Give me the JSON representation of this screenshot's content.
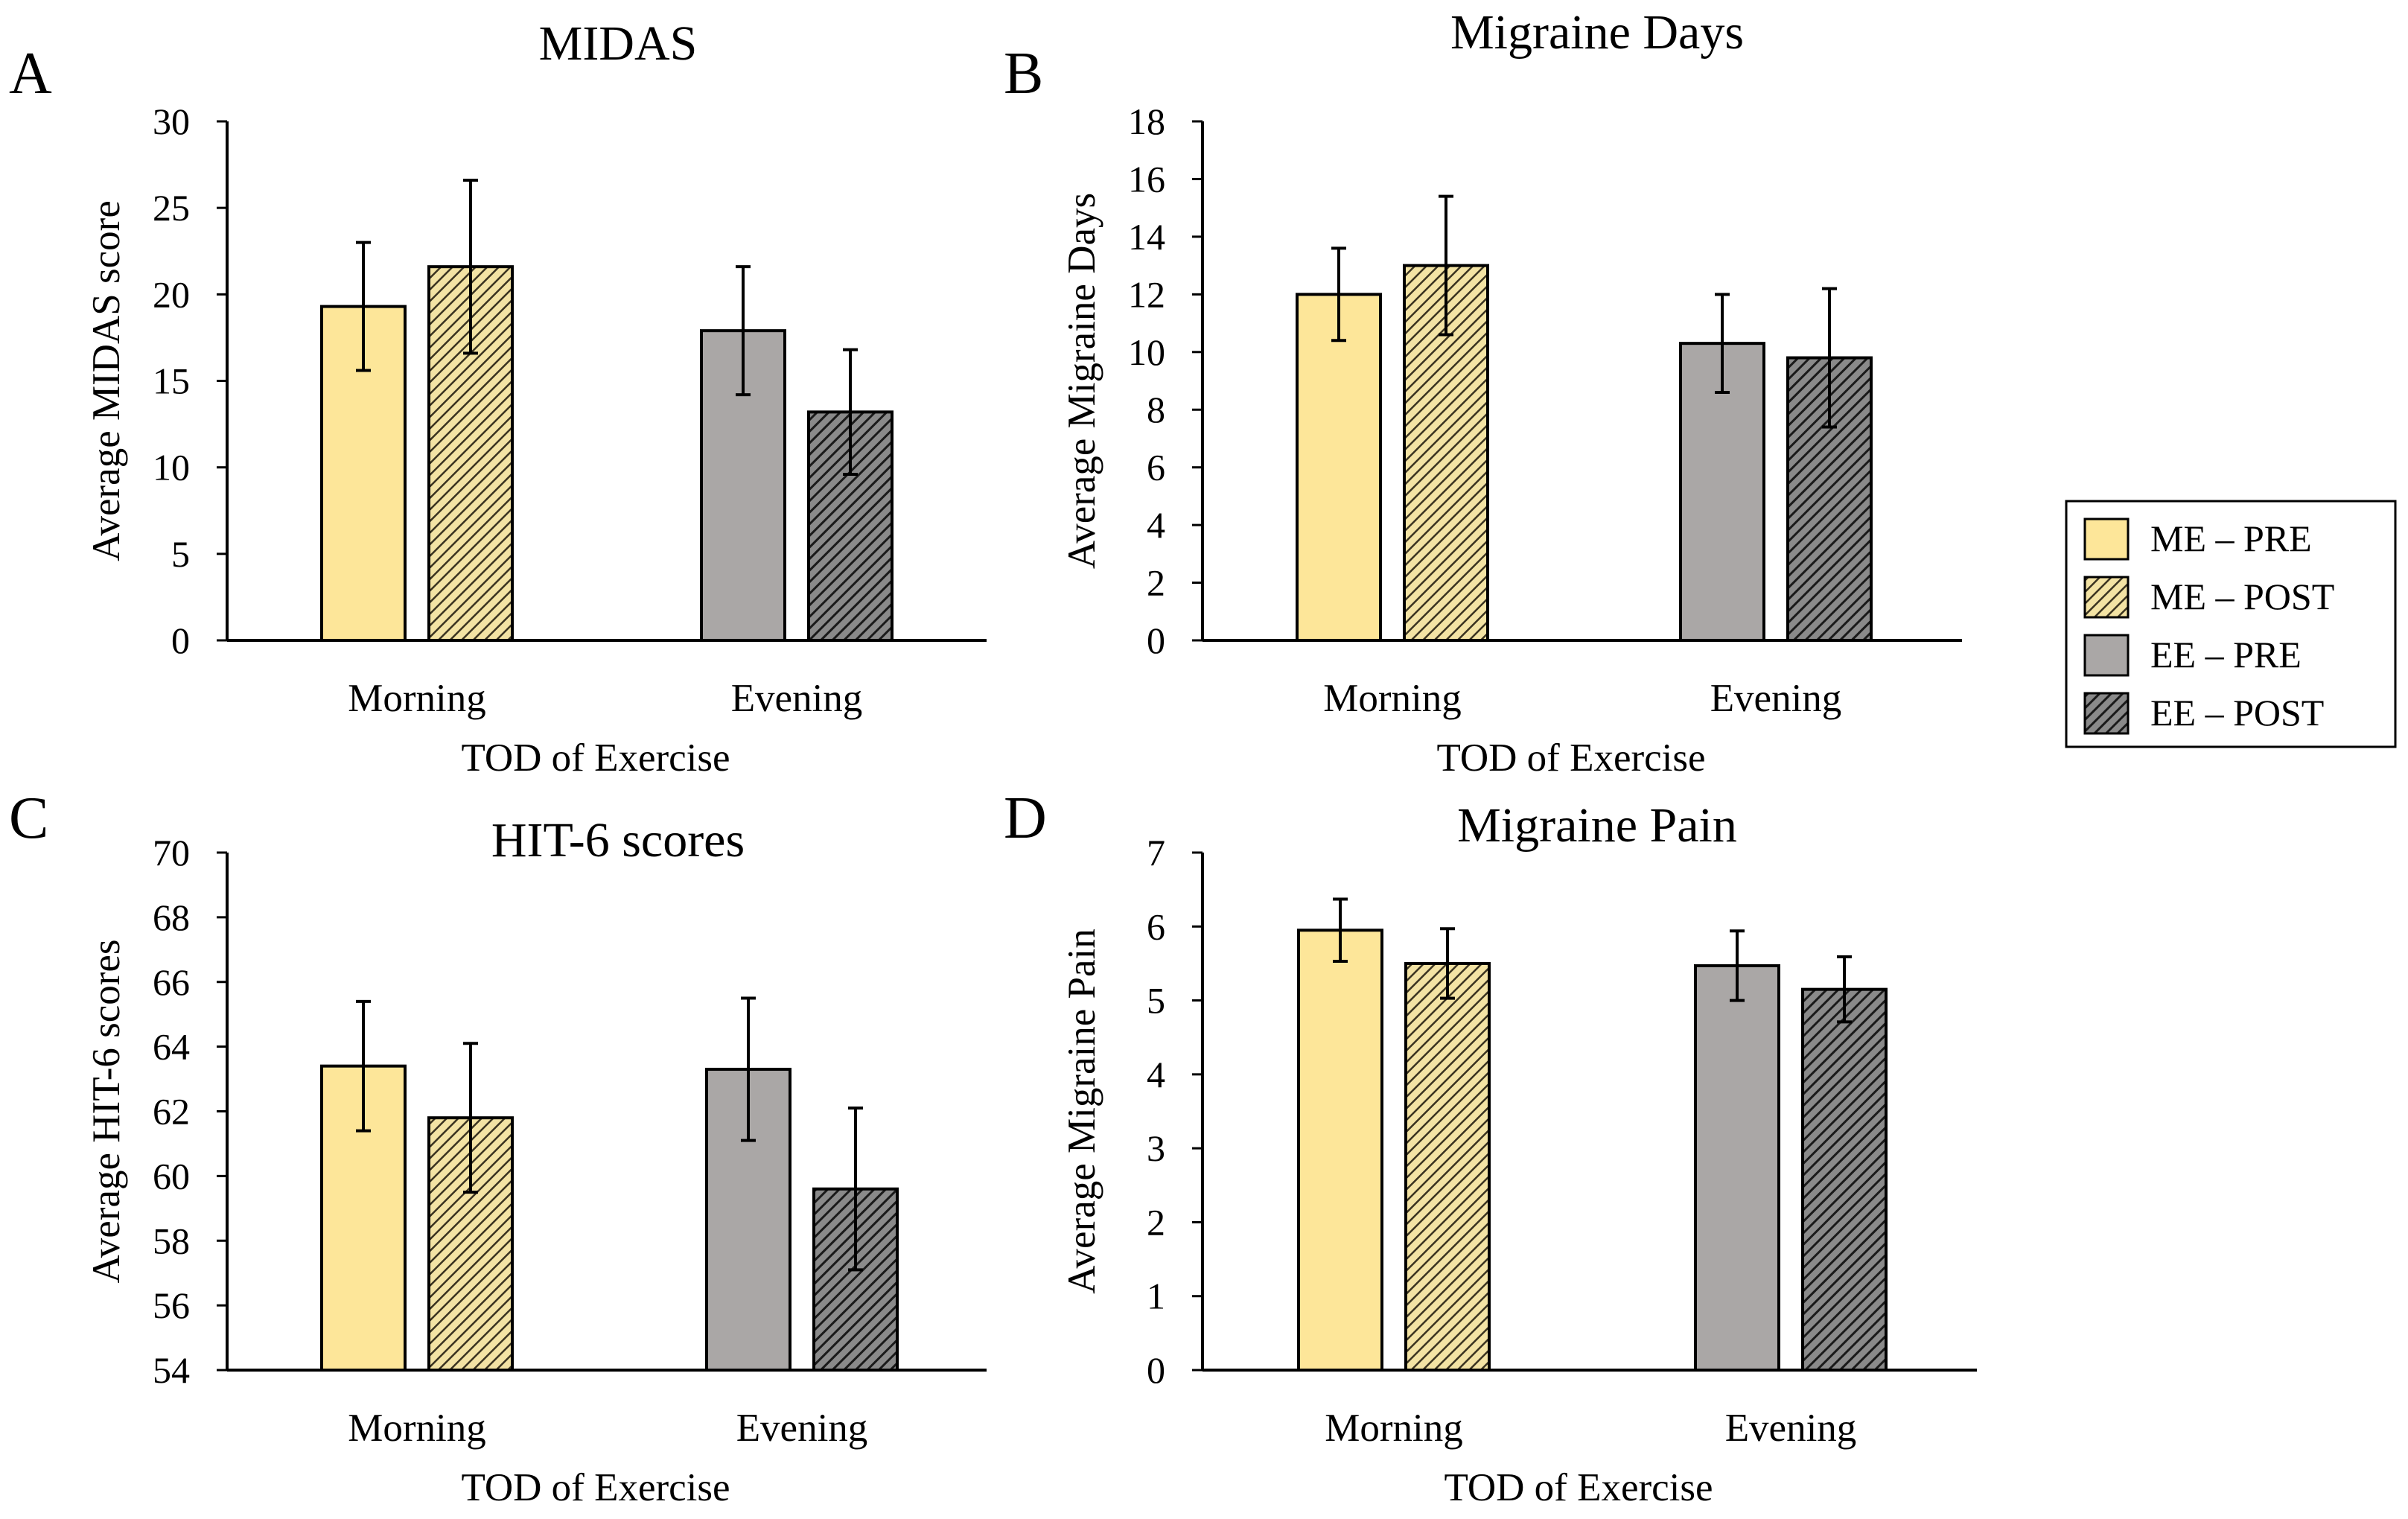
{
  "legend": {
    "items": [
      {
        "label": "ME – PRE",
        "color": "#fde699",
        "hatch": false
      },
      {
        "label": "ME – POST",
        "color": "#d9c16b",
        "hatch": true
      },
      {
        "label": "EE – PRE",
        "color": "#aaa7a6",
        "hatch": false
      },
      {
        "label": "EE – POST",
        "color": "#5a5a5a",
        "hatch": true
      }
    ]
  },
  "chart_data": [
    {
      "panel": "A",
      "type": "bar",
      "title": "MIDAS",
      "xlabel": "TOD of Exercise",
      "ylabel": "Average MIDAS score",
      "categories": [
        "Morning",
        "Evening"
      ],
      "ylim": [
        0,
        30
      ],
      "yticks": [
        0,
        5,
        10,
        15,
        20,
        25,
        30
      ],
      "series": [
        {
          "name": "ME – PRE",
          "values": [
            19.3,
            null
          ],
          "error": [
            3.7,
            null
          ]
        },
        {
          "name": "ME – POST",
          "values": [
            21.6,
            null
          ],
          "error": [
            5.0,
            null
          ]
        },
        {
          "name": "EE – PRE",
          "values": [
            null,
            17.9
          ],
          "error": [
            null,
            3.7
          ]
        },
        {
          "name": "EE – POST",
          "values": [
            null,
            13.2
          ],
          "error": [
            null,
            3.6
          ]
        }
      ]
    },
    {
      "panel": "B",
      "type": "bar",
      "title": "Migraine Days",
      "xlabel": "TOD of Exercise",
      "ylabel": "Average Migraine Days",
      "categories": [
        "Morning",
        "Evening"
      ],
      "ylim": [
        0,
        18
      ],
      "yticks": [
        0,
        2,
        4,
        6,
        8,
        10,
        12,
        14,
        16,
        18
      ],
      "series": [
        {
          "name": "ME – PRE",
          "values": [
            12.0,
            null
          ],
          "error": [
            1.6,
            null
          ]
        },
        {
          "name": "ME – POST",
          "values": [
            13.0,
            null
          ],
          "error": [
            2.4,
            null
          ]
        },
        {
          "name": "EE – PRE",
          "values": [
            null,
            10.3
          ],
          "error": [
            null,
            1.7
          ]
        },
        {
          "name": "EE – POST",
          "values": [
            null,
            9.8
          ],
          "error": [
            null,
            2.4
          ]
        }
      ]
    },
    {
      "panel": "C",
      "type": "bar",
      "title": "HIT-6 scores",
      "xlabel": "TOD of Exercise",
      "ylabel": "Average HIT-6 scores",
      "categories": [
        "Morning",
        "Evening"
      ],
      "ylim": [
        54,
        70
      ],
      "yticks": [
        54,
        56,
        58,
        60,
        62,
        64,
        66,
        68,
        70
      ],
      "series": [
        {
          "name": "ME – PRE",
          "values": [
            63.4,
            null
          ],
          "error": [
            2.0,
            null
          ]
        },
        {
          "name": "ME – POST",
          "values": [
            61.8,
            null
          ],
          "error": [
            2.3,
            null
          ]
        },
        {
          "name": "EE – PRE",
          "values": [
            null,
            63.3
          ],
          "error": [
            null,
            2.2
          ]
        },
        {
          "name": "EE – POST",
          "values": [
            null,
            59.6
          ],
          "error": [
            null,
            2.5
          ]
        }
      ]
    },
    {
      "panel": "D",
      "type": "bar",
      "title": "Migraine Pain",
      "xlabel": "TOD of Exercise",
      "ylabel": "Average Migraine Pain",
      "categories": [
        "Morning",
        "Evening"
      ],
      "ylim": [
        0,
        7
      ],
      "yticks": [
        0,
        1,
        2,
        3,
        4,
        5,
        6,
        7
      ],
      "series": [
        {
          "name": "ME – PRE",
          "values": [
            5.95,
            null
          ],
          "error": [
            0.42,
            null
          ]
        },
        {
          "name": "ME – POST",
          "values": [
            5.5,
            null
          ],
          "error": [
            0.47,
            null
          ]
        },
        {
          "name": "EE – PRE",
          "values": [
            null,
            5.47
          ],
          "error": [
            null,
            0.47
          ]
        },
        {
          "name": "EE – POST",
          "values": [
            null,
            5.15
          ],
          "error": [
            null,
            0.44
          ]
        }
      ]
    }
  ]
}
